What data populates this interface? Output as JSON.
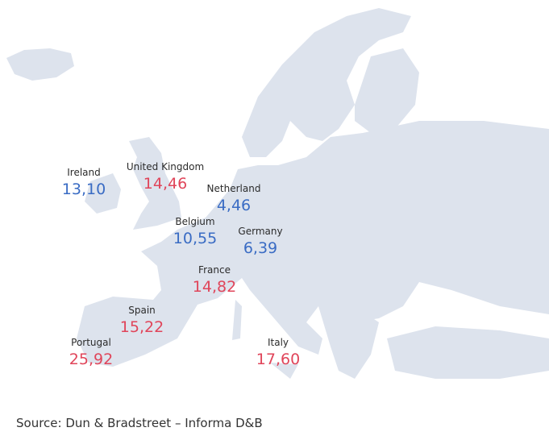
{
  "countries": [
    {
      "name": "Ireland",
      "value": "13,10",
      "color": "#3a6cc4"
    },
    {
      "name": "United Kingdom",
      "value": "14,46",
      "color": "#e0455a"
    },
    {
      "name": "Netherland",
      "value": "4,46",
      "color": "#3a6cc4"
    },
    {
      "name": "Belgium",
      "value": "10,55",
      "color": "#3a6cc4"
    },
    {
      "name": "Germany",
      "value": "6,39",
      "color": "#3a6cc4"
    },
    {
      "name": "France",
      "value": "14,82",
      "color": "#e0455a"
    },
    {
      "name": "Spain",
      "value": "15,22",
      "color": "#e0455a"
    },
    {
      "name": "Portugal",
      "value": "25,92",
      "color": "#e0455a"
    },
    {
      "name": "Italy",
      "value": "17,60",
      "color": "#e0455a"
    }
  ],
  "source": "Source: Dun & Bradstreet – Informa D&B"
}
